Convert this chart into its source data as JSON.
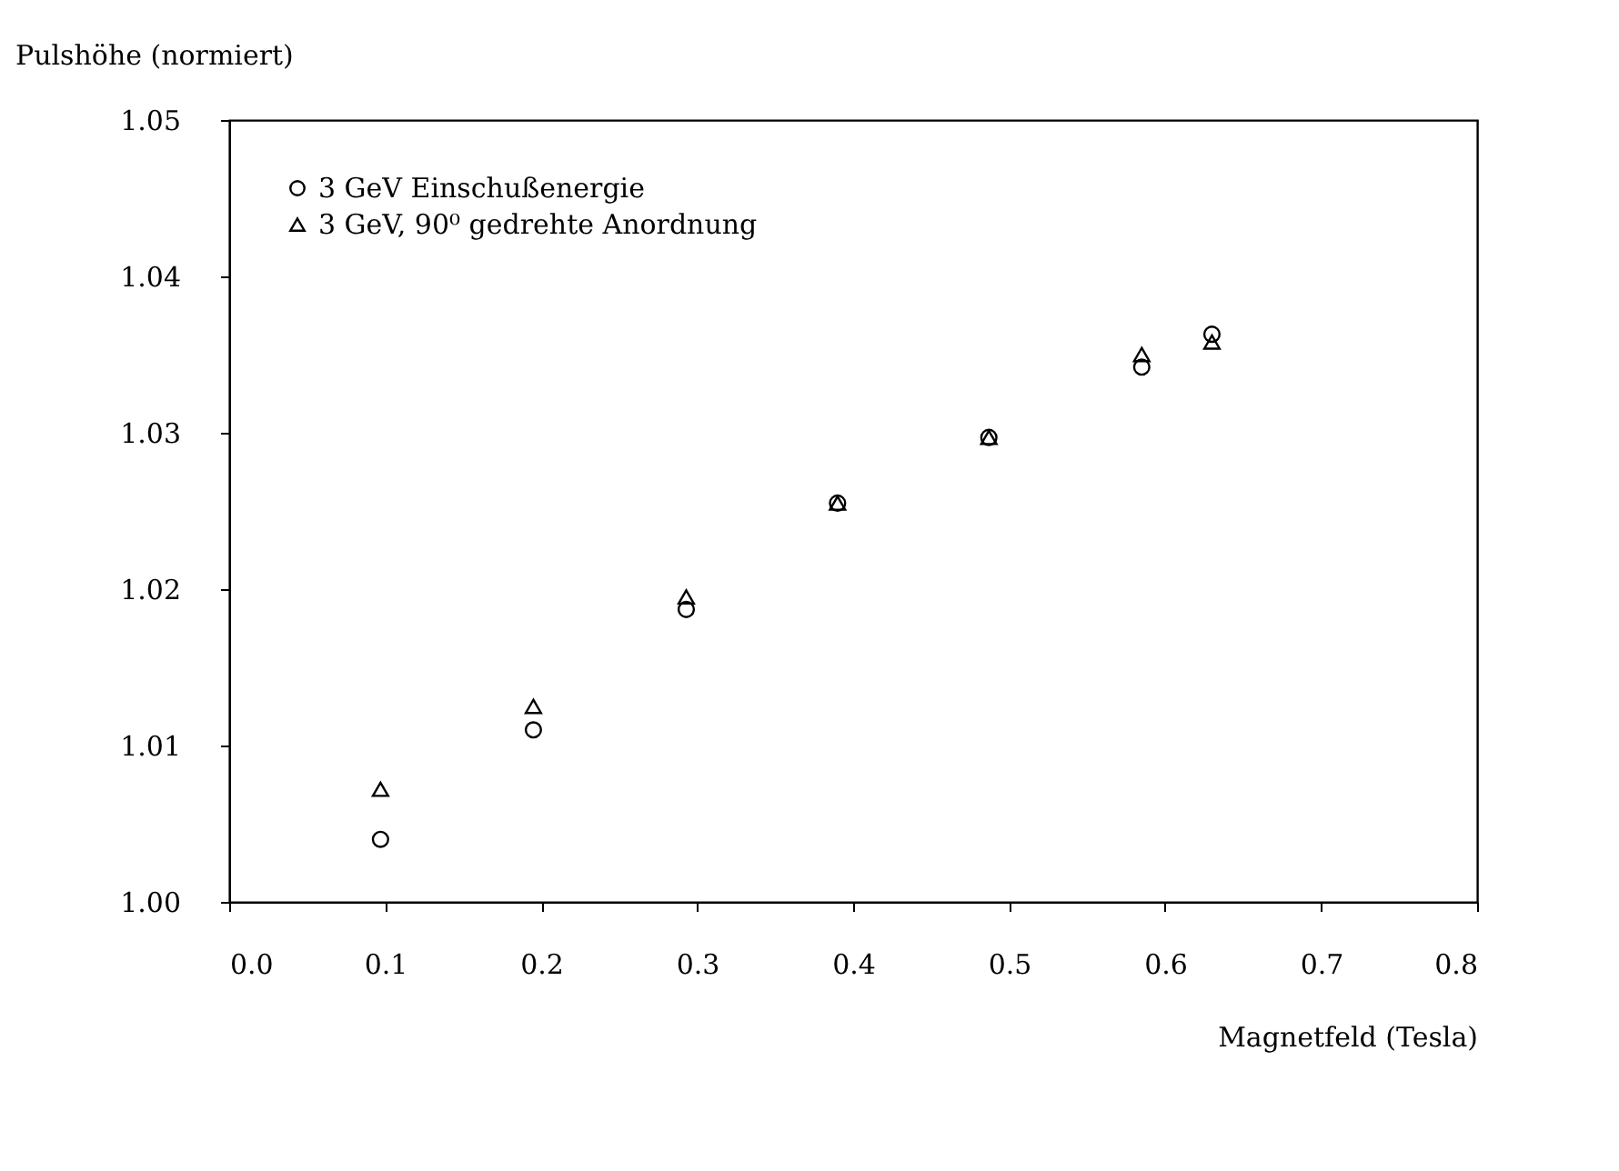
{
  "chart_data": {
    "type": "scatter",
    "xlabel": "Magnetfeld (Tesla)",
    "ylabel": "Pulshöhe (normiert)",
    "xlim": [
      0.0,
      0.8
    ],
    "xticks": [
      {
        "value": 0,
        "label": "0.0"
      },
      0.1,
      0.2,
      0.3,
      0.4,
      0.5,
      0.6,
      0.7,
      0.8
    ],
    "ylim": [
      1.0,
      1.05
    ],
    "yticks": [
      {
        "value": 1,
        "label": "1.00"
      },
      1.01,
      1.02,
      1.03,
      1.04,
      1.05
    ],
    "legend": "top left",
    "grid": false,
    "series": [
      {
        "name": "3 GeV Einschußenergie",
        "color": "#000000",
        "marker": "circle",
        "x": [
          0.097,
          0.195,
          0.293,
          0.39,
          0.487,
          0.585,
          0.63
        ],
        "values": [
          1.004,
          1.011,
          1.0187,
          1.0255,
          1.0297,
          1.0342,
          1.0363
        ]
      },
      {
        "name": "3 GeV, 90⁰ gedrehte Anordnung",
        "color": "#000000",
        "marker": "triangle",
        "x": [
          0.097,
          0.195,
          0.293,
          0.39,
          0.487,
          0.585,
          0.63
        ],
        "values": [
          1.0072,
          1.0125,
          1.0195,
          1.0255,
          1.0297,
          1.035,
          1.0358
        ]
      }
    ]
  }
}
